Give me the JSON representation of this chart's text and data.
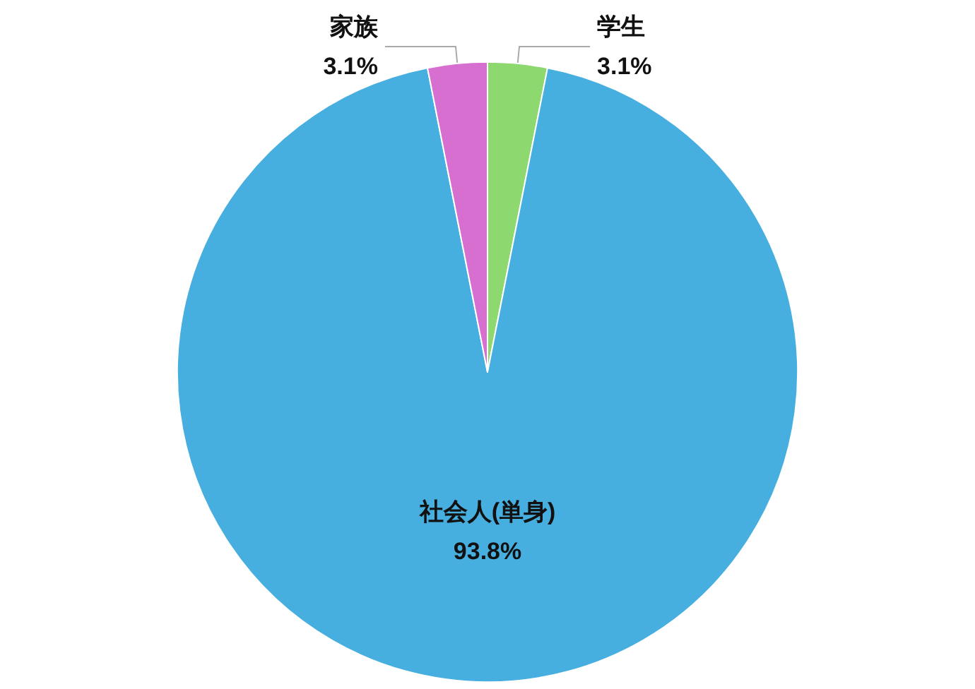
{
  "chart_data": {
    "type": "pie",
    "categories": [
      "学生",
      "社会人(単身)",
      "家族"
    ],
    "values": [
      3.1,
      93.8,
      3.1
    ],
    "colors": [
      "#8ed870",
      "#47afe0",
      "#d66fcf"
    ],
    "value_labels": [
      "3.1%",
      "93.8%",
      "3.1%"
    ]
  }
}
